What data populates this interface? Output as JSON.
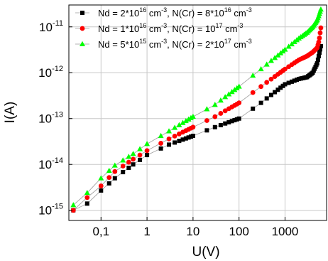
{
  "chart_data": {
    "type": "scatter",
    "xlabel": "U(V)",
    "ylabel": "I(A)",
    "x_scale": "log",
    "y_scale": "log",
    "xlim": [
      0.02,
      8000
    ],
    "ylim": [
      6e-16,
      3e-11
    ],
    "grid": true,
    "legend_position": "top",
    "x_ticks": [
      0.1,
      1,
      10,
      100,
      1000
    ],
    "x_tick_labels": [
      "0,1",
      "1",
      "10",
      "100",
      "1000"
    ],
    "y_ticks": [
      1e-15,
      1e-14,
      1e-13,
      1e-12,
      1e-11
    ],
    "y_tick_labels": [
      {
        "base": "10",
        "exp": "-15"
      },
      {
        "base": "10",
        "exp": "-14"
      },
      {
        "base": "10",
        "exp": "-13"
      },
      {
        "base": "10",
        "exp": "-12"
      },
      {
        "base": "10",
        "exp": "-11"
      }
    ],
    "series": [
      {
        "legend": [
          {
            "t": "Nd = 2*10"
          },
          {
            "t": "16",
            "sup": true
          },
          {
            "t": " cm"
          },
          {
            "t": "-3",
            "sup": true
          },
          {
            "t": ", N(Cr) = 8*10"
          },
          {
            "t": "16",
            "sup": true
          },
          {
            "t": " cm"
          },
          {
            "t": "-3",
            "sup": true
          }
        ],
        "marker": "square",
        "color": "#000000",
        "anchors": [
          [
            0.025,
            1e-15
          ],
          [
            0.05,
            1.4e-15
          ],
          [
            0.1,
            2.7e-15
          ],
          [
            0.2,
            5e-15
          ],
          [
            0.5,
            1e-14
          ],
          [
            1,
            1.6e-14
          ],
          [
            3,
            2.7e-14
          ],
          [
            10,
            4.2e-14
          ],
          [
            30,
            6.5e-14
          ],
          [
            100,
            1e-13
          ],
          [
            300,
            2.2e-13
          ],
          [
            1000,
            5.6e-13
          ],
          [
            2000,
            7.3e-13
          ],
          [
            3000,
            8e-13
          ],
          [
            4000,
            1e-12
          ],
          [
            5000,
            1.6e-12
          ],
          [
            5500,
            2.5e-12
          ],
          [
            6000,
            3.8e-12
          ]
        ]
      },
      {
        "legend": [
          {
            "t": "Nd = 1*10"
          },
          {
            "t": "16",
            "sup": true
          },
          {
            "t": " cm"
          },
          {
            "t": "-3",
            "sup": true
          },
          {
            "t": ", N(Cr) = 10"
          },
          {
            "t": "17",
            "sup": true
          },
          {
            "t": " cm"
          },
          {
            "t": "-3",
            "sup": true
          }
        ],
        "marker": "circle",
        "color": "#ff0000",
        "anchors": [
          [
            0.025,
            1e-15
          ],
          [
            0.05,
            1.9e-15
          ],
          [
            0.1,
            3.4e-15
          ],
          [
            0.2,
            7e-15
          ],
          [
            0.5,
            1.3e-14
          ],
          [
            1,
            2e-14
          ],
          [
            3,
            3.6e-14
          ],
          [
            10,
            6.5e-14
          ],
          [
            30,
            1.1e-13
          ],
          [
            100,
            2.2e-13
          ],
          [
            300,
            5e-13
          ],
          [
            1000,
            1.2e-12
          ],
          [
            2000,
            1.9e-12
          ],
          [
            3000,
            2.3e-12
          ],
          [
            4000,
            2.8e-12
          ],
          [
            5000,
            3.5e-12
          ],
          [
            5500,
            5e-12
          ],
          [
            6000,
            9.5e-12
          ]
        ]
      },
      {
        "legend": [
          {
            "t": "Nd = 5*10"
          },
          {
            "t": "15",
            "sup": true
          },
          {
            "t": " cm"
          },
          {
            "t": "-3",
            "sup": true
          },
          {
            "t": ", N(Cr) = 2*10"
          },
          {
            "t": "17",
            "sup": true
          },
          {
            "t": " cm"
          },
          {
            "t": "-3",
            "sup": true
          }
        ],
        "marker": "triangle",
        "color": "#00ff00",
        "anchors": [
          [
            0.025,
            1.3e-15
          ],
          [
            0.05,
            2.4e-15
          ],
          [
            0.1,
            5e-15
          ],
          [
            0.2,
            9.5e-15
          ],
          [
            0.5,
            1.7e-14
          ],
          [
            1,
            2.8e-14
          ],
          [
            3,
            5.3e-14
          ],
          [
            10,
            1.1e-13
          ],
          [
            30,
            2e-13
          ],
          [
            100,
            5e-13
          ],
          [
            300,
            1.2e-12
          ],
          [
            1000,
            3.2e-12
          ],
          [
            2000,
            5.6e-12
          ],
          [
            3000,
            7.5e-12
          ],
          [
            4000,
            1e-11
          ],
          [
            5000,
            1.4e-11
          ],
          [
            5500,
            1.8e-11
          ],
          [
            6000,
            2.4e-11
          ]
        ]
      }
    ]
  }
}
